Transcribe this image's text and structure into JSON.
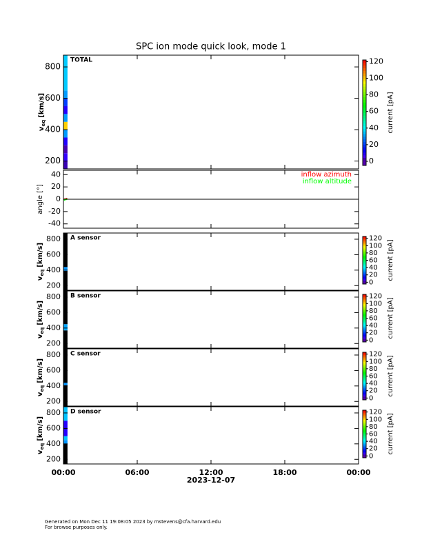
{
  "title": "SPC ion mode quick look, mode 1",
  "footer": [
    "Generated on Mon Dec 11 19:08:05 2023 by mstevens@cfa.harvard.edu",
    "For browse purposes only."
  ],
  "xlabel": "2023-12-07",
  "xlim": [
    0,
    24
  ],
  "xticks": [
    {
      "value": 0,
      "label": "00:00"
    },
    {
      "value": 6,
      "label": "06:00"
    },
    {
      "value": 12,
      "label": "12:00"
    },
    {
      "value": 18,
      "label": "18:00"
    },
    {
      "value": 24,
      "label": "00:00"
    }
  ],
  "chart_data": [
    {
      "type": "heatmap",
      "label": "TOTAL",
      "ylabel": [
        "v",
        "eq",
        "[km/s]"
      ],
      "ylim": [
        150,
        875
      ],
      "yticks": [
        200,
        400,
        600,
        800
      ],
      "xbins": [
        0,
        0.33
      ],
      "ybins": [
        150,
        200,
        250,
        300,
        350,
        400,
        450,
        500,
        550,
        600,
        650,
        875
      ],
      "values": [
        5,
        8,
        3,
        10,
        30,
        100,
        30,
        10,
        20,
        30,
        35
      ],
      "clim": [
        -5,
        122
      ],
      "cticks": [
        0,
        20,
        40,
        60,
        80,
        100,
        120
      ],
      "clabel": "current [pA]"
    },
    {
      "type": "line",
      "ylabel": "angle [°]",
      "ylim": [
        -47,
        47
      ],
      "yticks": [
        -40,
        -20,
        0,
        20,
        40
      ],
      "series": [
        {
          "name": "inflow azimuth",
          "color": "#ff0000",
          "x": [
            0.1,
            0.25
          ],
          "values": [
            0,
            1
          ]
        },
        {
          "name": "inflow altitude",
          "color": "#00ff00",
          "x": [
            0.1,
            0.25
          ],
          "values": [
            -1,
            0
          ]
        }
      ]
    },
    {
      "type": "heatmap",
      "label": "A sensor",
      "ylabel": [
        "v",
        "eq",
        "[km/s]"
      ],
      "ylim": [
        140,
        880
      ],
      "yticks": [
        200,
        400,
        600,
        800
      ],
      "xbins": [
        0,
        0.33
      ],
      "ybins": [
        140,
        390,
        440,
        880
      ],
      "values": [
        null,
        30,
        null
      ],
      "clim": [
        -5,
        125
      ],
      "cticks": [
        0,
        20,
        40,
        60,
        80,
        100,
        120
      ],
      "clabel": "current [pA]"
    },
    {
      "type": "heatmap",
      "label": "B sensor",
      "ylabel": [
        "v",
        "eq",
        "[km/s]"
      ],
      "ylim": [
        140,
        880
      ],
      "yticks": [
        200,
        400,
        600,
        800
      ],
      "xbins": [
        0,
        0.33
      ],
      "ybins": [
        140,
        370,
        450,
        880
      ],
      "values": [
        null,
        32,
        null
      ],
      "clim": [
        -5,
        125
      ],
      "cticks": [
        0,
        20,
        40,
        60,
        80,
        100,
        120
      ],
      "clabel": "current [pA]"
    },
    {
      "type": "heatmap",
      "label": "C sensor",
      "ylabel": [
        "v",
        "eq",
        "[km/s]"
      ],
      "ylim": [
        140,
        880
      ],
      "yticks": [
        200,
        400,
        600,
        800
      ],
      "xbins": [
        0,
        0.33
      ],
      "ybins": [
        140,
        410,
        440,
        880
      ],
      "values": [
        null,
        30,
        null
      ],
      "clim": [
        -5,
        125
      ],
      "cticks": [
        0,
        20,
        40,
        60,
        80,
        100,
        120
      ],
      "clabel": "current [pA]"
    },
    {
      "type": "heatmap",
      "label": "D sensor",
      "ylabel": [
        "v",
        "eq",
        "[km/s]"
      ],
      "ylim": [
        140,
        880
      ],
      "yticks": [
        200,
        400,
        600,
        800
      ],
      "xbins": [
        0,
        0.33
      ],
      "ybins": [
        140,
        400,
        450,
        500,
        700,
        880
      ],
      "values": [
        null,
        30,
        35,
        10,
        35
      ],
      "clim": [
        -5,
        125
      ],
      "cticks": [
        0,
        20,
        40,
        60,
        80,
        100,
        120
      ],
      "clabel": "current [pA]"
    }
  ]
}
